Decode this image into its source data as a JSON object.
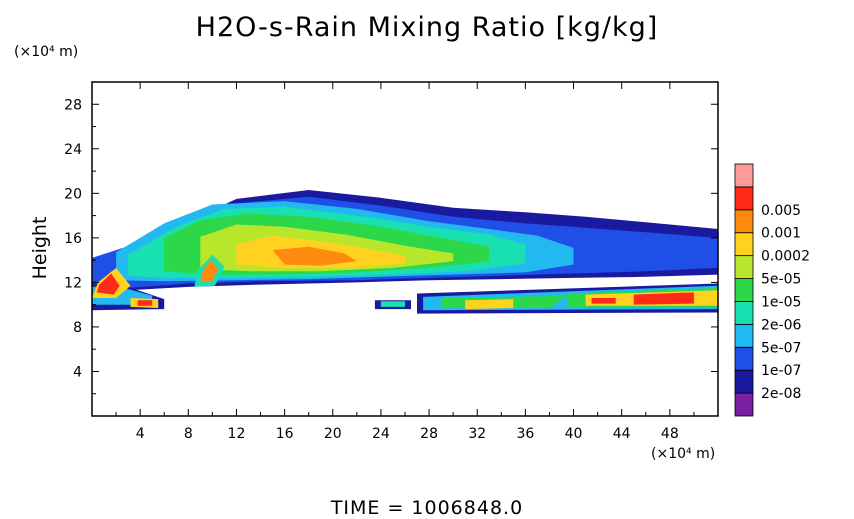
{
  "chart_data": {
    "type": "heatmap",
    "title": "H2O-s-Rain Mixing Ratio [kg/kg]",
    "ylabel": "Height",
    "xlabel": "",
    "y_unit": "(×10⁴ m)",
    "x_unit": "(×10⁴ m)",
    "xlim": [
      0,
      52
    ],
    "ylim": [
      0,
      30
    ],
    "x_ticks": [
      "4",
      "8",
      "12",
      "16",
      "20",
      "24",
      "28",
      "32",
      "36",
      "40",
      "44",
      "48"
    ],
    "y_ticks": [
      "4",
      "8",
      "12",
      "16",
      "20",
      "24",
      "28"
    ],
    "colorbar": {
      "labels": [
        "0.005",
        "0.001",
        "0.0002",
        "5e-05",
        "1e-05",
        "2e-06",
        "5e-07",
        "1e-07",
        "2e-08"
      ],
      "colors": [
        "#7a1fa0",
        "#1a1aa0",
        "#1f4fe6",
        "#22b8f0",
        "#18e0b0",
        "#2cd84a",
        "#b8e62a",
        "#ffd21f",
        "#ff8a10",
        "#ff2a1a",
        "#ff9a9a"
      ]
    },
    "regions": [
      {
        "level": 1,
        "points": [
          [
            0,
            13.6
          ],
          [
            4,
            15.2
          ],
          [
            8,
            17.5
          ],
          [
            12,
            19.5
          ],
          [
            18,
            20.3
          ],
          [
            24,
            19.6
          ],
          [
            30,
            18.7
          ],
          [
            36,
            18.3
          ],
          [
            41,
            17.9
          ],
          [
            46,
            17.4
          ],
          [
            52,
            16.8
          ],
          [
            52,
            12.7
          ],
          [
            46,
            12.5
          ],
          [
            40,
            12.4
          ],
          [
            34,
            12.3
          ],
          [
            28,
            12.2
          ],
          [
            22,
            12.0
          ],
          [
            14,
            11.8
          ],
          [
            8,
            11.6
          ],
          [
            3,
            11.3
          ],
          [
            0,
            11.2
          ]
        ]
      },
      {
        "level": 2,
        "points": [
          [
            0,
            14.2
          ],
          [
            4,
            15.6
          ],
          [
            8,
            17.6
          ],
          [
            12,
            19.1
          ],
          [
            18,
            19.7
          ],
          [
            24,
            18.9
          ],
          [
            30,
            17.9
          ],
          [
            36,
            17.3
          ],
          [
            41,
            16.9
          ],
          [
            46,
            16.5
          ],
          [
            52,
            16.0
          ],
          [
            52,
            13.3
          ],
          [
            46,
            13.0
          ],
          [
            40,
            12.8
          ],
          [
            34,
            12.6
          ],
          [
            28,
            12.4
          ],
          [
            22,
            12.2
          ],
          [
            14,
            12.1
          ],
          [
            8,
            11.9
          ],
          [
            3,
            11.5
          ],
          [
            0,
            11.4
          ]
        ]
      },
      {
        "level": 3,
        "points": [
          [
            2,
            14.7
          ],
          [
            6,
            17.3
          ],
          [
            10,
            19.0
          ],
          [
            16,
            19.3
          ],
          [
            22,
            18.6
          ],
          [
            28,
            17.5
          ],
          [
            33,
            16.8
          ],
          [
            37,
            16.2
          ],
          [
            40,
            15.1
          ],
          [
            40,
            13.6
          ],
          [
            36,
            12.9
          ],
          [
            30,
            12.7
          ],
          [
            24,
            12.5
          ],
          [
            18,
            12.3
          ],
          [
            12,
            12.2
          ],
          [
            6,
            12.1
          ],
          [
            2,
            12.2
          ]
        ]
      },
      {
        "level": 4,
        "points": [
          [
            3,
            14.5
          ],
          [
            7,
            17.0
          ],
          [
            11,
            18.6
          ],
          [
            16,
            18.8
          ],
          [
            22,
            18.0
          ],
          [
            28,
            17.0
          ],
          [
            33,
            16.3
          ],
          [
            36,
            15.4
          ],
          [
            36,
            13.7
          ],
          [
            31,
            13.0
          ],
          [
            25,
            12.7
          ],
          [
            18,
            12.5
          ],
          [
            12,
            12.4
          ],
          [
            6,
            12.4
          ],
          [
            3,
            12.6
          ]
        ]
      },
      {
        "level": 5,
        "points": [
          [
            6,
            16.0
          ],
          [
            9,
            17.6
          ],
          [
            13,
            18.2
          ],
          [
            18,
            17.9
          ],
          [
            24,
            17.0
          ],
          [
            29,
            16.0
          ],
          [
            33,
            15.2
          ],
          [
            33,
            13.9
          ],
          [
            28,
            13.3
          ],
          [
            22,
            12.9
          ],
          [
            16,
            12.7
          ],
          [
            10,
            12.7
          ],
          [
            6,
            13.0
          ]
        ]
      },
      {
        "level": 6,
        "points": [
          [
            9,
            16.1
          ],
          [
            12,
            17.2
          ],
          [
            16,
            17.0
          ],
          [
            21,
            16.3
          ],
          [
            26,
            15.3
          ],
          [
            30,
            14.6
          ],
          [
            30,
            13.9
          ],
          [
            25,
            13.3
          ],
          [
            19,
            13.0
          ],
          [
            13,
            13.0
          ],
          [
            9,
            13.2
          ]
        ]
      },
      {
        "level": 7,
        "points": [
          [
            12,
            15.4
          ],
          [
            15,
            16.2
          ],
          [
            19,
            15.7
          ],
          [
            23,
            15.0
          ],
          [
            26,
            14.4
          ],
          [
            26,
            13.7
          ],
          [
            21,
            13.3
          ],
          [
            16,
            13.3
          ],
          [
            12,
            13.6
          ]
        ]
      },
      {
        "level": 8,
        "points": [
          [
            15,
            14.9
          ],
          [
            18,
            15.2
          ],
          [
            21,
            14.6
          ],
          [
            22,
            13.9
          ],
          [
            19,
            13.5
          ],
          [
            16,
            13.6
          ]
        ]
      },
      {
        "level": 1,
        "points": [
          [
            0,
            9.5
          ],
          [
            6,
            9.6
          ],
          [
            6,
            10.5
          ],
          [
            3,
            11.6
          ],
          [
            0,
            11.9
          ]
        ]
      },
      {
        "level": 3,
        "points": [
          [
            0,
            10.0
          ],
          [
            5,
            10.0
          ],
          [
            5,
            10.8
          ],
          [
            2,
            11.7
          ],
          [
            0,
            11.6
          ]
        ]
      },
      {
        "level": 7,
        "points": [
          [
            0,
            10.6
          ],
          [
            2,
            10.6
          ],
          [
            3.2,
            11.7
          ],
          [
            2,
            13.3
          ],
          [
            0.5,
            12.0
          ]
        ]
      },
      {
        "level": 9,
        "points": [
          [
            0.4,
            11.1
          ],
          [
            1.8,
            10.9
          ],
          [
            2.3,
            11.7
          ],
          [
            1.6,
            12.8
          ],
          [
            0.6,
            11.8
          ]
        ]
      },
      {
        "level": 7,
        "points": [
          [
            3.2,
            9.8
          ],
          [
            5.5,
            9.7
          ],
          [
            5.5,
            10.5
          ],
          [
            3.2,
            10.6
          ]
        ]
      },
      {
        "level": 9,
        "points": [
          [
            3.8,
            9.9
          ],
          [
            5.0,
            9.9
          ],
          [
            5.0,
            10.4
          ],
          [
            3.8,
            10.4
          ]
        ]
      },
      {
        "level": 4,
        "points": [
          [
            8.5,
            11.6
          ],
          [
            10.2,
            11.7
          ],
          [
            11.0,
            13.4
          ],
          [
            10.0,
            14.5
          ],
          [
            8.8,
            13.1
          ]
        ]
      },
      {
        "level": 8,
        "points": [
          [
            9.0,
            12.0
          ],
          [
            10.0,
            12.1
          ],
          [
            10.5,
            13.3
          ],
          [
            9.8,
            14.0
          ],
          [
            9.2,
            13.0
          ]
        ]
      },
      {
        "level": 1,
        "points": [
          [
            23.5,
            9.6
          ],
          [
            26.5,
            9.6
          ],
          [
            26.5,
            10.4
          ],
          [
            23.5,
            10.4
          ]
        ]
      },
      {
        "level": 4,
        "points": [
          [
            24.0,
            9.8
          ],
          [
            26.0,
            9.8
          ],
          [
            26.0,
            10.3
          ],
          [
            24.0,
            10.3
          ]
        ]
      },
      {
        "level": 1,
        "points": [
          [
            27.0,
            9.2
          ],
          [
            52,
            9.3
          ],
          [
            52,
            11.9
          ],
          [
            27.0,
            11.0
          ]
        ]
      },
      {
        "level": 3,
        "points": [
          [
            27.5,
            9.5
          ],
          [
            52,
            9.6
          ],
          [
            52,
            11.7
          ],
          [
            27.5,
            10.7
          ]
        ]
      },
      {
        "level": 5,
        "points": [
          [
            29.0,
            9.7
          ],
          [
            38.0,
            9.7
          ],
          [
            39.5,
            10.8
          ],
          [
            29.0,
            10.6
          ]
        ]
      },
      {
        "level": 5,
        "points": [
          [
            39.5,
            9.8
          ],
          [
            52,
            9.8
          ],
          [
            52,
            11.5
          ],
          [
            39.5,
            11.0
          ]
        ]
      },
      {
        "level": 7,
        "points": [
          [
            31.0,
            9.6
          ],
          [
            35.0,
            9.7
          ],
          [
            35.0,
            10.5
          ],
          [
            31.0,
            10.4
          ]
        ]
      },
      {
        "level": 7,
        "points": [
          [
            41.0,
            9.9
          ],
          [
            52,
            9.9
          ],
          [
            52,
            11.3
          ],
          [
            41.0,
            10.9
          ]
        ]
      },
      {
        "level": 9,
        "points": [
          [
            45.0,
            10.0
          ],
          [
            50.0,
            10.1
          ],
          [
            50.0,
            11.1
          ],
          [
            45.0,
            10.9
          ]
        ]
      },
      {
        "level": 9,
        "points": [
          [
            41.5,
            10.1
          ],
          [
            43.5,
            10.1
          ],
          [
            43.5,
            10.6
          ],
          [
            41.5,
            10.6
          ]
        ]
      }
    ]
  },
  "footer": "TIME  =  1006848.0"
}
